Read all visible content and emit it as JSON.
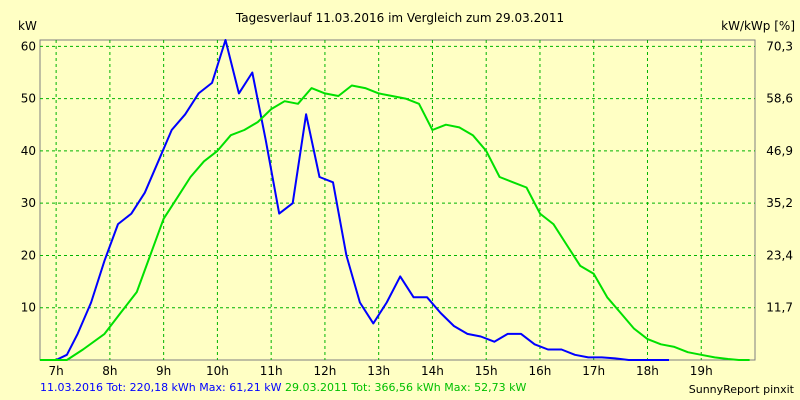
{
  "chart_data": {
    "type": "line",
    "title": "Tagesverlauf 11.03.2016 im Vergleich zum 29.03.2011",
    "ylabel_left": "kW",
    "ylabel_right": "kW/kWp [%]",
    "x_ticks": [
      "7h",
      "8h",
      "9h",
      "10h",
      "11h",
      "12h",
      "13h",
      "14h",
      "15h",
      "16h",
      "17h",
      "18h",
      "19h"
    ],
    "xlim": [
      6.7,
      20.0
    ],
    "ylim": [
      0,
      61.21
    ],
    "y_ticks_left": [
      "10",
      "20",
      "30",
      "40",
      "50",
      "60"
    ],
    "y_ticks_right": [
      "11,7",
      "23,4",
      "35,2",
      "46,9",
      "58,6",
      "70,3"
    ],
    "grid": true,
    "series": [
      {
        "name": "11.03.2016",
        "color": "#0000ff",
        "x": [
          6.7,
          7.0,
          7.2,
          7.4,
          7.65,
          7.9,
          8.15,
          8.4,
          8.65,
          8.9,
          9.15,
          9.4,
          9.65,
          9.9,
          10.15,
          10.4,
          10.65,
          10.9,
          11.15,
          11.4,
          11.65,
          11.9,
          12.15,
          12.4,
          12.65,
          12.9,
          13.15,
          13.4,
          13.65,
          13.9,
          14.15,
          14.4,
          14.65,
          14.9,
          15.15,
          15.4,
          15.65,
          15.9,
          16.15,
          16.4,
          16.65,
          16.9,
          17.15,
          17.4,
          17.65,
          18.0,
          18.4
        ],
        "y": [
          0,
          0,
          1,
          5,
          11,
          19,
          26,
          28,
          32,
          38,
          44,
          47,
          51,
          53,
          61.21,
          51,
          55,
          42,
          28,
          30,
          47,
          35,
          34,
          20,
          11,
          7,
          11,
          16,
          12,
          12,
          9,
          6.5,
          5,
          4.5,
          3.5,
          5,
          5,
          3,
          2,
          2,
          1,
          0.5,
          0.5,
          0.3,
          0,
          0,
          0
        ]
      },
      {
        "name": "29.03.2011",
        "color": "#00e000",
        "x": [
          6.7,
          7.2,
          7.5,
          7.9,
          8.2,
          8.5,
          8.75,
          9.0,
          9.25,
          9.5,
          9.75,
          10.0,
          10.25,
          10.5,
          10.75,
          11.0,
          11.25,
          11.5,
          11.75,
          12.0,
          12.25,
          12.5,
          12.75,
          13.0,
          13.25,
          13.5,
          13.75,
          14.0,
          14.25,
          14.5,
          14.75,
          15.0,
          15.25,
          15.5,
          15.75,
          16.0,
          16.25,
          16.5,
          16.75,
          17.0,
          17.25,
          17.5,
          17.75,
          18.0,
          18.25,
          18.5,
          18.75,
          19.0,
          19.25,
          19.5,
          19.7,
          19.9
        ],
        "y": [
          0,
          0,
          2,
          5,
          9,
          13,
          20,
          27,
          31,
          35,
          38,
          40,
          43,
          44,
          45.5,
          48,
          49.5,
          49,
          52,
          51,
          50.5,
          52.5,
          52,
          51,
          50.5,
          50,
          49,
          44,
          45,
          44.5,
          43,
          40,
          35,
          34,
          33,
          28,
          26,
          22,
          18,
          16.5,
          12,
          9,
          6,
          4,
          3,
          2.5,
          1.5,
          1,
          0.5,
          0.2,
          0,
          0
        ]
      }
    ],
    "footer": {
      "series1_text": "11.03.2016 Tot: 220,18 kWh Max: 61,21 kW",
      "series2_text": "29.03.2011 Tot: 366,56 kWh Max: 52,73 kW",
      "credit": "SunnyReport pinxit"
    }
  },
  "colors": {
    "background": "#ffffc4",
    "grid": "#00b400",
    "series1": "#0000ff",
    "series2": "#00e000"
  }
}
